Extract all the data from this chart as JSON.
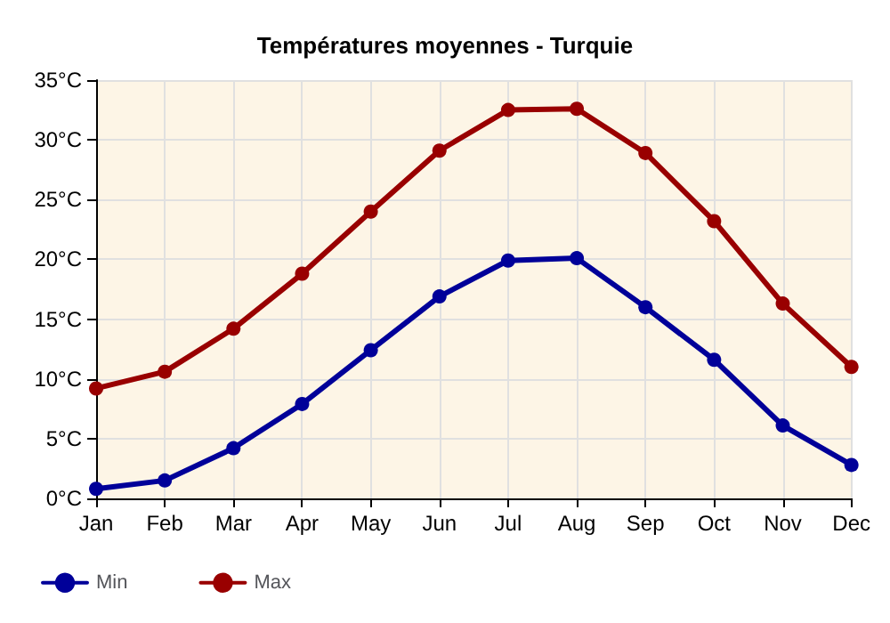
{
  "chart_data": {
    "type": "line",
    "title": "Températures moyennes - Turquie",
    "categories": [
      "Jan",
      "Feb",
      "Mar",
      "Apr",
      "May",
      "Jun",
      "Jul",
      "Aug",
      "Sep",
      "Oct",
      "Nov",
      "Dec"
    ],
    "series": [
      {
        "name": "Min",
        "color": "#000099",
        "values": [
          0.8,
          1.5,
          4.2,
          7.9,
          12.4,
          16.9,
          19.9,
          20.1,
          16.0,
          11.6,
          6.1,
          2.8
        ]
      },
      {
        "name": "Max",
        "color": "#990000",
        "values": [
          9.2,
          10.6,
          14.2,
          18.8,
          24.0,
          29.1,
          32.5,
          32.6,
          28.9,
          23.2,
          16.3,
          11.0
        ]
      }
    ],
    "ylim": [
      0,
      35
    ],
    "yticks": [
      {
        "value": 0,
        "label": "0°C"
      },
      {
        "value": 5,
        "label": "5°C"
      },
      {
        "value": 10,
        "label": "10°C"
      },
      {
        "value": 15,
        "label": "15°C"
      },
      {
        "value": 20,
        "label": "20°C"
      },
      {
        "value": 25,
        "label": "25°C"
      },
      {
        "value": 30,
        "label": "30°C"
      },
      {
        "value": 35,
        "label": "35°C"
      }
    ],
    "grid": true,
    "legend": "bottom left",
    "marker": "circle",
    "line_style": "solid"
  }
}
